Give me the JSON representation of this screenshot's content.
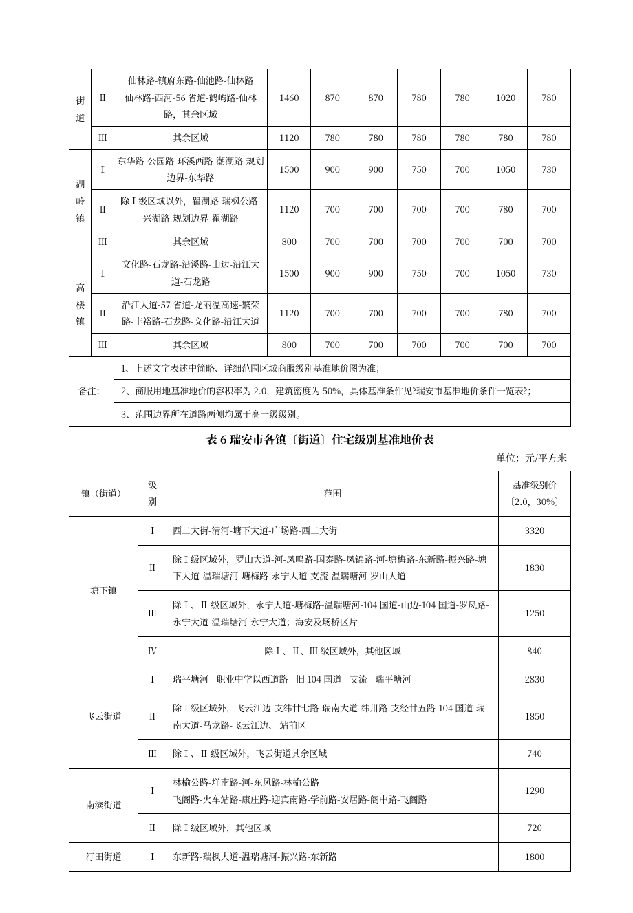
{
  "table1": {
    "columns_count": 10,
    "border_color": "#000000",
    "background": "#ffffff",
    "zones": [
      {
        "name": "街道",
        "rows": [
          {
            "level": "",
            "desc": "仙林路-镇府东路-仙池路-仙林路",
            "vals": [
              "",
              "",
              "",
              "",
              "",
              "",
              ""
            ],
            "no_border_bottom": true
          },
          {
            "level": "Ⅱ",
            "desc": "仙林路-西河-56 省道-鹤屿路-仙林路，其余区域",
            "vals": [
              "1460",
              "870",
              "870",
              "780",
              "780",
              "1020",
              "780"
            ],
            "merge_with_prev": true
          },
          {
            "level": "Ⅲ",
            "desc": "其余区域",
            "vals": [
              "1120",
              "780",
              "780",
              "780",
              "780",
              "780",
              "780"
            ]
          }
        ]
      },
      {
        "name": "湖岭镇",
        "rows": [
          {
            "level": "Ⅰ",
            "desc": "东华路-公园路-环溪西路-潮湖路-规划边界-东华路",
            "vals": [
              "1500",
              "900",
              "900",
              "750",
              "700",
              "1050",
              "730"
            ]
          },
          {
            "level": "Ⅱ",
            "desc": "除Ⅰ级区域以外，瞿湖路-瑞枫公路-兴湖路-规划边界-瞿湖路",
            "vals": [
              "1120",
              "700",
              "700",
              "700",
              "700",
              "780",
              "700"
            ]
          },
          {
            "level": "Ⅲ",
            "desc": "其余区域",
            "vals": [
              "800",
              "700",
              "700",
              "700",
              "700",
              "700",
              "700"
            ]
          }
        ]
      },
      {
        "name": "高楼镇",
        "rows": [
          {
            "level": "Ⅰ",
            "desc": "文化路-石龙路-沿溪路-山边-沿江大道-石龙路",
            "vals": [
              "1500",
              "900",
              "900",
              "750",
              "700",
              "1050",
              "730"
            ]
          },
          {
            "level": "Ⅱ",
            "desc": "沿江大道-57 省道-龙丽温高速-繁荣路-丰裕路-石龙路-文化路-沿江大道",
            "vals": [
              "1120",
              "700",
              "700",
              "700",
              "700",
              "780",
              "700"
            ]
          },
          {
            "level": "Ⅲ",
            "desc": "其余区域",
            "vals": [
              "800",
              "700",
              "700",
              "700",
              "700",
              "700",
              "700"
            ]
          }
        ]
      }
    ],
    "notes_label": "备注：",
    "notes": [
      "1、上述文字表述中简略、详细范围区域商服级别基准地价图为准；",
      "2、商服用地基准地价的容积率为 2.0，建筑密度为 50%，具体基准条件见?瑞安市基准地价条件一览表?；",
      "3、范围边界所在道路两侧均属于高一级级别。"
    ]
  },
  "section_title": "表 6 瑞安市各镇〔街道〕住宅级别基准地价表",
  "unit_label": "单位：元/平方米",
  "table2": {
    "headers": {
      "col0": "镇（街道）",
      "col1": "级别",
      "col2": "范围",
      "col3": "基准级别价〔2.0，30%〕"
    },
    "zones": [
      {
        "name": "塘下镇",
        "rows": [
          {
            "level": "Ⅰ",
            "desc": "西二大街-清河-塘下大道-广场路-西二大街",
            "price": "3320"
          },
          {
            "level": "Ⅱ",
            "desc": "除Ⅰ级区域外，罗山大道-河-凤鸣路-国泰路-凤锦路-河-塘梅路-东新路-振兴路-塘下大道-温瑞塘河-塘梅路-永宁大道-支流-温瑞塘河-罗山大道",
            "price": "1830"
          },
          {
            "level": "Ⅲ",
            "desc": "除Ⅰ、Ⅱ 级区域外，永宁大道-塘梅路-温瑞塘河-104 国道-山边-104 国道-罗凤路-永宁大道-温瑞塘河-永宁大道；海安及场桥区片",
            "price": "1250"
          },
          {
            "level": "Ⅳ",
            "desc": "除Ⅰ、Ⅱ、Ⅲ 级区域外，其他区域",
            "center": true,
            "price": "840"
          }
        ]
      },
      {
        "name": "飞云街道",
        "rows": [
          {
            "level": "Ⅰ",
            "desc": "瑞平塘河—职业中学以西道路—旧 104 国道—支流—瑞平塘河",
            "price": "2830"
          },
          {
            "level": "Ⅱ",
            "desc": "除Ⅰ级区域外，飞云江边-支纬廿七路-瑞南大道-纬卅路-支经廿五路-104 国道-瑞南大道-马龙路-飞云江边、 站前区",
            "price": "1850"
          },
          {
            "level": "Ⅲ",
            "desc": "除Ⅰ、Ⅱ 级区域外，飞云街道其余区域",
            "price": "740"
          }
        ]
      },
      {
        "name": "南滨街道",
        "rows": [
          {
            "level": "Ⅰ",
            "desc": "林榆公路-垟南路-河-东风路-林榆公路\n飞阁路-火车站路-康庄路-迎宾南路-学前路-安居路-阁中路-飞阁路",
            "price": "1290"
          },
          {
            "level": "Ⅱ",
            "desc": "除Ⅰ级区域外，其他区域",
            "price": "720"
          }
        ]
      },
      {
        "name": "汀田街道",
        "rows": [
          {
            "level": "Ⅰ",
            "desc": "东新路-瑞枫大道-温瑞塘河-振兴路-东新路",
            "price": "1800"
          }
        ]
      }
    ]
  }
}
